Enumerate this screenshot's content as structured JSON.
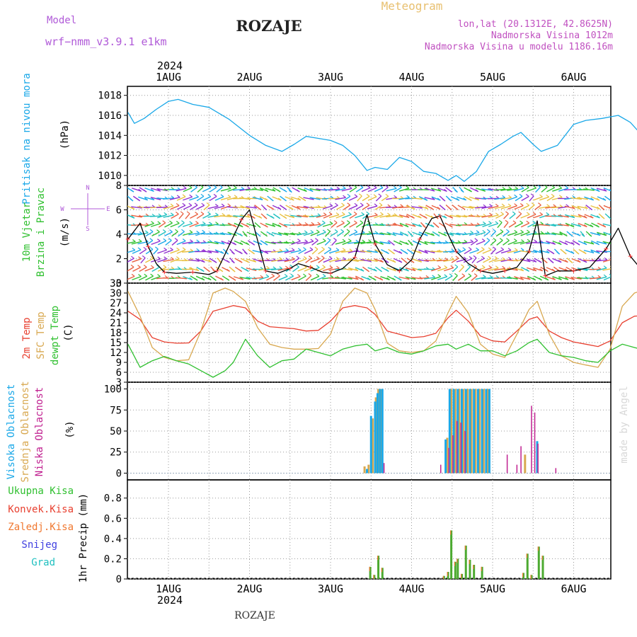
{
  "header": {
    "model_label": "Model",
    "model_name": "wrf−nmm_v3.9.1 e1km",
    "title": "ROZAJE",
    "meteogram_label": "Meteogram",
    "lonlat": "lon,lat (20.1312E, 42.8625N)",
    "elevation": "Nadmorska Visina 1012m",
    "model_elevation": "Nadmorska Visina u modelu 1186.16m",
    "footer_location": "ROZAJE",
    "watermark": "made by Angel"
  },
  "colors": {
    "model": "#b05ad8",
    "meteogram": "#e8c070",
    "info": "#c050c0",
    "pressure": "#1aa8e8",
    "temp2m": "#e84030",
    "sfctemp": "#d8a850",
    "dewpt": "#30c030",
    "high_cloud": "#1aa8e8",
    "mid_cloud": "#d8a850",
    "low_cloud": "#c02090",
    "total_precip": "#4caa30",
    "conv_precip": "#e83030",
    "frozen_precip": "#f07830",
    "snow": "#4040e0",
    "graupel": "#20c0c0",
    "wind_line": "#000000",
    "wind_markers": "#ff3030",
    "watermark": "#d8d8d8"
  },
  "chart_data": [
    {
      "id": "pressure",
      "type": "line",
      "ylabel_color": "Pritisak na nivou mora",
      "ylabel_unit": "(hPa)",
      "ylim": [
        1009,
        1018.9
      ],
      "yticks": [
        1010,
        1012,
        1014,
        1016,
        1018
      ],
      "xtop_year": "2024",
      "xtop_labels": [
        "1AUG",
        "2AUG",
        "3AUG",
        "4AUG",
        "5AUG",
        "6AUG"
      ],
      "x": [
        -0.5,
        -0.42,
        -0.3,
        -0.15,
        0,
        0.12,
        0.3,
        0.5,
        0.75,
        1.0,
        1.2,
        1.4,
        1.55,
        1.7,
        1.85,
        2.0,
        2.15,
        2.3,
        2.45,
        2.55,
        2.7,
        2.85,
        3.0,
        3.15,
        3.3,
        3.45,
        3.55,
        3.65,
        3.8,
        3.95,
        4.1,
        4.25,
        4.35,
        4.5,
        4.6,
        4.8,
        5.0,
        5.15,
        5.35,
        5.55,
        5.7,
        5.9,
        6.1,
        6.3,
        6.45,
        6.55
      ],
      "y": [
        1016.3,
        1015.2,
        1015.7,
        1016.6,
        1017.4,
        1017.6,
        1017.1,
        1016.8,
        1015.6,
        1014.0,
        1013.0,
        1012.4,
        1013.1,
        1013.9,
        1013.7,
        1013.5,
        1013.0,
        1012.0,
        1010.5,
        1010.8,
        1010.6,
        1011.8,
        1011.4,
        1010.4,
        1010.2,
        1009.5,
        1010.0,
        1009.4,
        1010.4,
        1012.4,
        1013.1,
        1013.9,
        1014.3,
        1013.1,
        1012.4,
        1013.0,
        1015.1,
        1015.5,
        1015.7,
        1016.0,
        1015.3,
        1013.5,
        1013.4,
        1015.4,
        1016.0,
        1013.8
      ]
    },
    {
      "id": "wind",
      "type": "line",
      "ylabel_a": "10m Vjetar",
      "ylabel_b": "Brzina i Pravac",
      "ylabel_unit": "(m/s)",
      "compass": [
        "N",
        "W",
        "E",
        "S"
      ],
      "ylim": [
        0,
        8
      ],
      "yticks": [
        0,
        2,
        4,
        6,
        8
      ],
      "x": [
        -0.5,
        -0.35,
        -0.25,
        -0.15,
        -0.05,
        0.1,
        0.3,
        0.5,
        0.6,
        0.75,
        0.9,
        1.0,
        1.2,
        1.35,
        1.5,
        1.6,
        1.75,
        1.9,
        2.0,
        2.15,
        2.3,
        2.45,
        2.55,
        2.7,
        2.85,
        3.0,
        3.1,
        3.25,
        3.35,
        3.45,
        3.55,
        3.7,
        3.85,
        4.0,
        4.15,
        4.3,
        4.45,
        4.55,
        4.65,
        4.8,
        5.0,
        5.2,
        5.4,
        5.55,
        5.7,
        5.85,
        6.0,
        6.2,
        6.4,
        6.55
      ],
      "y": [
        3.6,
        4.9,
        3.0,
        1.6,
        0.9,
        0.8,
        0.9,
        0.7,
        1.0,
        3.1,
        5.2,
        6.0,
        1.0,
        0.8,
        1.2,
        1.6,
        1.3,
        0.9,
        0.8,
        1.2,
        2.1,
        5.6,
        3.2,
        1.5,
        1.0,
        1.9,
        3.6,
        5.3,
        5.5,
        4.0,
        2.6,
        1.6,
        1.0,
        0.8,
        1.0,
        1.3,
        2.6,
        5.1,
        0.6,
        1.0,
        1.0,
        1.3,
        2.8,
        4.5,
        2.2,
        1.0,
        0.8,
        0.6,
        1.5,
        3.3
      ]
    },
    {
      "id": "temperature",
      "type": "line",
      "ylabel_a": "2m Temp",
      "ylabel_b": "SFC Temp",
      "ylabel_c": "dewpt Temp",
      "ylabel_unit": "(C)",
      "ylim": [
        3,
        33
      ],
      "yticks": [
        3,
        6,
        9,
        12,
        15,
        18,
        21,
        24,
        27,
        30,
        33
      ],
      "x": [
        -0.5,
        -0.35,
        -0.2,
        -0.05,
        0.1,
        0.25,
        0.4,
        0.55,
        0.7,
        0.8,
        0.95,
        1.1,
        1.25,
        1.4,
        1.55,
        1.7,
        1.85,
        2.0,
        2.15,
        2.3,
        2.45,
        2.55,
        2.7,
        2.85,
        3.0,
        3.15,
        3.3,
        3.45,
        3.55,
        3.7,
        3.85,
        4.0,
        4.15,
        4.3,
        4.45,
        4.55,
        4.7,
        4.85,
        5.0,
        5.15,
        5.3,
        5.45,
        5.6,
        5.75,
        5.9,
        6.05,
        6.2,
        6.35,
        6.55
      ],
      "series": [
        {
          "name": "2m Temp",
          "values": [
            24.5,
            22,
            16.5,
            15.2,
            14.8,
            14.9,
            18.5,
            24.5,
            25.5,
            26.2,
            25.5,
            21.5,
            19.8,
            19.5,
            19.2,
            18.5,
            18.7,
            21.5,
            25.5,
            26.2,
            25.5,
            23.5,
            18.5,
            17.5,
            16.5,
            16.8,
            17.8,
            22.5,
            24.8,
            21.5,
            17.0,
            15.5,
            15.2,
            18.5,
            22.0,
            22.8,
            18.5,
            16.5,
            15.2,
            14.5,
            13.8,
            15.5,
            21.0,
            23.0,
            23.2,
            20.5,
            16.5,
            15.2,
            24.0
          ]
        },
        {
          "name": "SFC Temp",
          "values": [
            30.5,
            23,
            13.5,
            10.5,
            9.5,
            9.8,
            18.5,
            30.0,
            31.5,
            30.5,
            27.5,
            19.5,
            14.5,
            13.5,
            13.0,
            13.0,
            13.2,
            17.5,
            27.5,
            31.5,
            30.0,
            25.0,
            14.8,
            12.5,
            12.0,
            12.5,
            15.5,
            24.0,
            29.0,
            24.0,
            14.5,
            11.5,
            10.5,
            17.5,
            25.0,
            27.5,
            17.5,
            11.0,
            9.0,
            8.2,
            7.5,
            13.0,
            26.0,
            30.0,
            31.2,
            27.5,
            13.5,
            10.0,
            30.0
          ]
        },
        {
          "name": "dewpt Temp",
          "values": [
            14.5,
            7.5,
            9.5,
            10.8,
            9.5,
            8.5,
            6.5,
            4.5,
            6.5,
            9.0,
            16.0,
            11.0,
            7.5,
            9.5,
            10.0,
            13.0,
            12.0,
            11.0,
            13.0,
            14.0,
            14.5,
            12.5,
            13.5,
            12.0,
            11.5,
            12.5,
            14.0,
            14.5,
            13.0,
            14.5,
            12.5,
            12.5,
            11.0,
            12.5,
            15.0,
            16.0,
            12.0,
            11.0,
            10.5,
            9.5,
            9.0,
            12.5,
            14.5,
            13.5,
            12.5,
            15.0,
            13.5,
            14.0,
            14.5
          ]
        }
      ]
    },
    {
      "id": "clouds",
      "type": "bar",
      "ylabel_a": "Visoka Oblacnost",
      "ylabel_b": "Srednja Oblacnost",
      "ylabel_c": "Niska Oblacnost",
      "ylabel_unit": "(%)",
      "ylim": [
        -8,
        108
      ],
      "yticks": [
        0,
        25,
        50,
        75,
        100
      ],
      "high": [
        [
          2.45,
          5
        ],
        [
          2.5,
          68
        ],
        [
          2.55,
          85
        ],
        [
          2.58,
          95
        ],
        [
          2.61,
          100
        ],
        [
          2.64,
          100
        ],
        [
          3.42,
          40
        ],
        [
          3.47,
          100
        ],
        [
          3.52,
          100
        ],
        [
          3.57,
          100
        ],
        [
          3.62,
          100
        ],
        [
          3.67,
          100
        ],
        [
          3.72,
          100
        ],
        [
          3.77,
          100
        ],
        [
          3.82,
          100
        ],
        [
          3.87,
          100
        ],
        [
          3.92,
          100
        ],
        [
          3.96,
          100
        ],
        [
          4.55,
          38
        ]
      ],
      "mid": [
        [
          2.42,
          8
        ],
        [
          2.47,
          10
        ],
        [
          2.52,
          65
        ],
        [
          2.56,
          90
        ],
        [
          2.59,
          100
        ],
        [
          2.62,
          100
        ],
        [
          3.44,
          42
        ],
        [
          3.49,
          100
        ],
        [
          3.54,
          100
        ],
        [
          3.59,
          100
        ],
        [
          3.64,
          100
        ],
        [
          3.69,
          100
        ],
        [
          3.74,
          100
        ],
        [
          3.79,
          100
        ],
        [
          3.84,
          100
        ],
        [
          3.89,
          100
        ],
        [
          3.94,
          100
        ],
        [
          4.4,
          22
        ]
      ],
      "low": [
        [
          2.66,
          12
        ],
        [
          3.36,
          10
        ],
        [
          3.46,
          30
        ],
        [
          3.51,
          45
        ],
        [
          3.56,
          62
        ],
        [
          3.61,
          60
        ],
        [
          3.66,
          50
        ],
        [
          4.18,
          22
        ],
        [
          4.3,
          10
        ],
        [
          4.35,
          32
        ],
        [
          4.48,
          80
        ],
        [
          4.52,
          72
        ],
        [
          4.56,
          35
        ],
        [
          4.78,
          6
        ],
        [
          6.42,
          20
        ],
        [
          6.46,
          10
        ]
      ]
    },
    {
      "id": "precip",
      "type": "bar",
      "legend": [
        "Ukupna Kisa",
        "Konvek.Kisa",
        "Zaledj.Kisa",
        "Snijeg",
        "Grad"
      ],
      "ylabel_unit": "1hr Precip (mm)",
      "ylim": [
        0,
        0.98
      ],
      "yticks": [
        0,
        0.2,
        0.4,
        0.6,
        0.8
      ],
      "xbottom_labels": [
        "1AUG",
        "2AUG",
        "3AUG",
        "4AUG",
        "5AUG",
        "6AUG"
      ],
      "xbottom_year": "2024",
      "total": [
        [
          2.49,
          0.12
        ],
        [
          2.54,
          0.04
        ],
        [
          2.59,
          0.23
        ],
        [
          2.64,
          0.11
        ],
        [
          3.4,
          0.03
        ],
        [
          3.45,
          0.07
        ],
        [
          3.49,
          0.48
        ],
        [
          3.54,
          0.17
        ],
        [
          3.57,
          0.2
        ],
        [
          3.62,
          0.05
        ],
        [
          3.67,
          0.33
        ],
        [
          3.72,
          0.19
        ],
        [
          3.77,
          0.14
        ],
        [
          3.87,
          0.12
        ],
        [
          4.38,
          0.06
        ],
        [
          4.43,
          0.25
        ],
        [
          4.48,
          0.04
        ],
        [
          4.57,
          0.32
        ],
        [
          4.62,
          0.23
        ]
      ]
    }
  ]
}
